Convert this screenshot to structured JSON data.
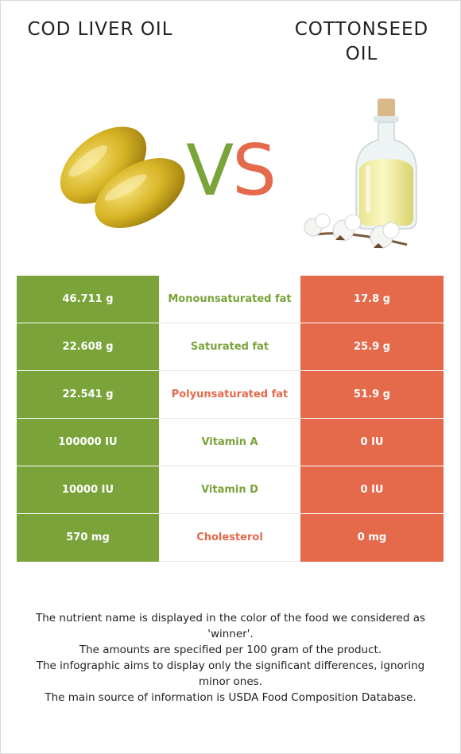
{
  "header": {
    "food_left": "COD LIVER OIL",
    "food_right": "COTTONSEED OIL",
    "vs_v": "V",
    "vs_s": "S"
  },
  "colors": {
    "left_winner": "#7aa33a",
    "right_winner": "#e46a4b",
    "text": "#222222"
  },
  "illustrations": {
    "left": "cod-liver-oil-capsules-icon",
    "right": "cottonseed-oil-bottle-icon"
  },
  "rows": [
    {
      "nutrient": "Monounsaturated fat",
      "left": "46.711 g",
      "right": "17.8 g",
      "winner": "left"
    },
    {
      "nutrient": "Saturated fat",
      "left": "22.608 g",
      "right": "25.9 g",
      "winner": "left"
    },
    {
      "nutrient": "Polyunsaturated fat",
      "left": "22.541 g",
      "right": "51.9 g",
      "winner": "right"
    },
    {
      "nutrient": "Vitamin A",
      "left": "100000 IU",
      "right": "0 IU",
      "winner": "left"
    },
    {
      "nutrient": "Vitamin D",
      "left": "10000 IU",
      "right": "0 IU",
      "winner": "left"
    },
    {
      "nutrient": "Cholesterol",
      "left": "570 mg",
      "right": "0 mg",
      "winner": "right"
    }
  ],
  "footnote": [
    "The nutrient name is displayed in the color of the food we considered as 'winner'.",
    "The amounts are specified per 100 gram of the product.",
    "The infographic aims to display only the significant differences, ignoring minor ones.",
    "The main source of information is USDA Food Composition Database."
  ]
}
